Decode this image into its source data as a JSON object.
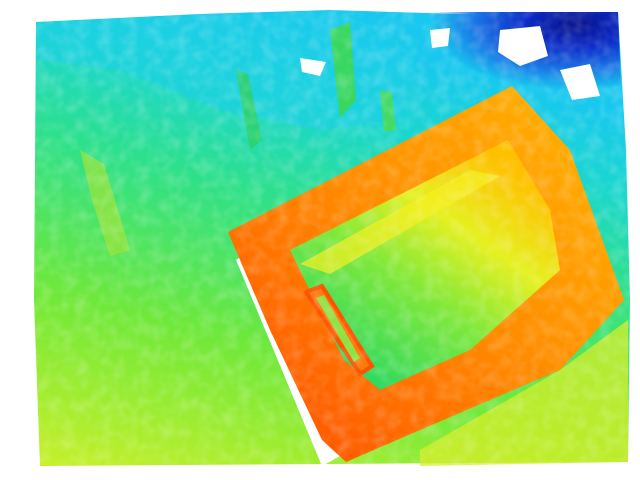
{
  "image": {
    "kind": "depth-map",
    "colormap": "jet",
    "background_color": "#ffffff",
    "subject": "box",
    "palette": {
      "far": "#0a1a9a",
      "far_mid": "#1e6fe0",
      "mid_far": "#17c9e6",
      "mid": "#2fe0a0",
      "mid_near": "#4fe84a",
      "near_mid": "#b8f030",
      "near": "#f7ee1a",
      "closer": "#ffb400",
      "closest": "#ff6a0a",
      "nearest": "#ff4a00"
    }
  }
}
